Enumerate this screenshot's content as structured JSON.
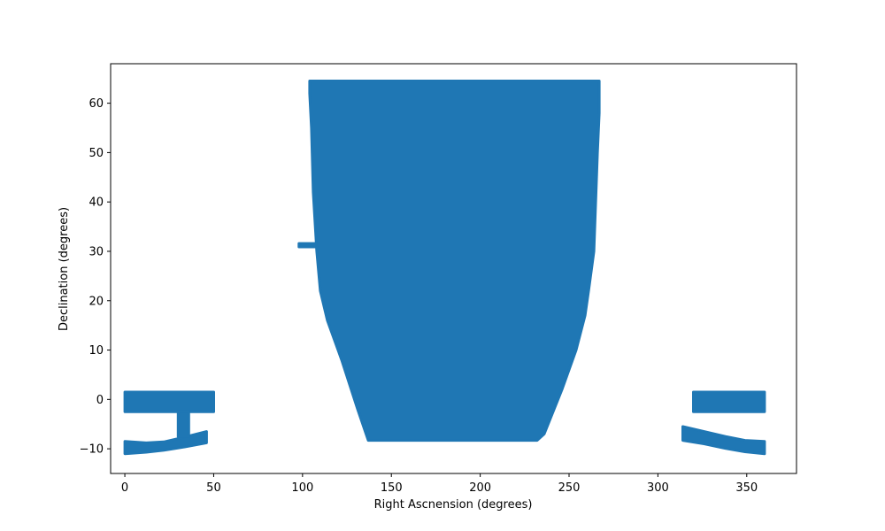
{
  "chart_data": {
    "type": "scatter",
    "title": "",
    "xlabel": "Right Ascnension (degrees)",
    "ylabel": "Declination (degrees)",
    "xlim": [
      -8,
      378
    ],
    "ylim": [
      -15,
      68
    ],
    "x_ticks": [
      0,
      50,
      100,
      150,
      200,
      250,
      300,
      350
    ],
    "y_ticks": [
      -10,
      0,
      10,
      20,
      30,
      40,
      50,
      60
    ],
    "grid": false,
    "legend": "none",
    "marker_color": "#1f77b4",
    "regions": [
      {
        "name": "stripe-0-dec-0",
        "points": [
          [
            0,
            1.5
          ],
          [
            50,
            1.5
          ],
          [
            50,
            -2.5
          ],
          [
            0,
            -2.5
          ]
        ]
      },
      {
        "name": "stripe-0-dec-minus10",
        "points": [
          [
            0,
            -8.5
          ],
          [
            12,
            -8.8
          ],
          [
            22,
            -8.6
          ],
          [
            34,
            -7.6
          ],
          [
            46,
            -6.5
          ],
          [
            46,
            -8.8
          ],
          [
            34,
            -9.6
          ],
          [
            22,
            -10.3
          ],
          [
            12,
            -10.7
          ],
          [
            0,
            -11
          ]
        ]
      },
      {
        "name": "connector-ra-30",
        "points": [
          [
            30,
            -2.5
          ],
          [
            36,
            -2.5
          ],
          [
            36,
            -7.5
          ],
          [
            30,
            -7.5
          ]
        ]
      },
      {
        "name": "isolated-strip-dec-31",
        "points": [
          [
            98,
            31.6
          ],
          [
            108,
            31.6
          ],
          [
            108,
            30.9
          ],
          [
            98,
            30.9
          ]
        ]
      },
      {
        "name": "main-footprint",
        "points": [
          [
            104,
            64.5
          ],
          [
            267,
            64.5
          ],
          [
            267,
            58
          ],
          [
            266,
            50
          ],
          [
            265,
            40
          ],
          [
            264,
            30
          ],
          [
            261,
            22
          ],
          [
            259,
            17
          ],
          [
            254,
            10
          ],
          [
            246,
            2
          ],
          [
            236,
            -7
          ],
          [
            232,
            -8.3
          ],
          [
            137,
            -8.3
          ],
          [
            131,
            -2
          ],
          [
            122,
            8
          ],
          [
            114,
            16
          ],
          [
            110,
            22
          ],
          [
            108,
            30
          ],
          [
            106,
            42
          ],
          [
            105,
            55
          ],
          [
            104,
            62
          ]
        ]
      },
      {
        "name": "stripe-320-dec-0",
        "points": [
          [
            320,
            1.5
          ],
          [
            360,
            1.5
          ],
          [
            360,
            -2.5
          ],
          [
            320,
            -2.5
          ]
        ]
      },
      {
        "name": "stripe-315-dec-minus10",
        "points": [
          [
            314,
            -5.5
          ],
          [
            326,
            -6.5
          ],
          [
            338,
            -7.5
          ],
          [
            349,
            -8.3
          ],
          [
            360,
            -8.5
          ],
          [
            360,
            -11
          ],
          [
            349,
            -10.6
          ],
          [
            338,
            -9.9
          ],
          [
            326,
            -9
          ],
          [
            314,
            -8.3
          ]
        ]
      }
    ]
  }
}
